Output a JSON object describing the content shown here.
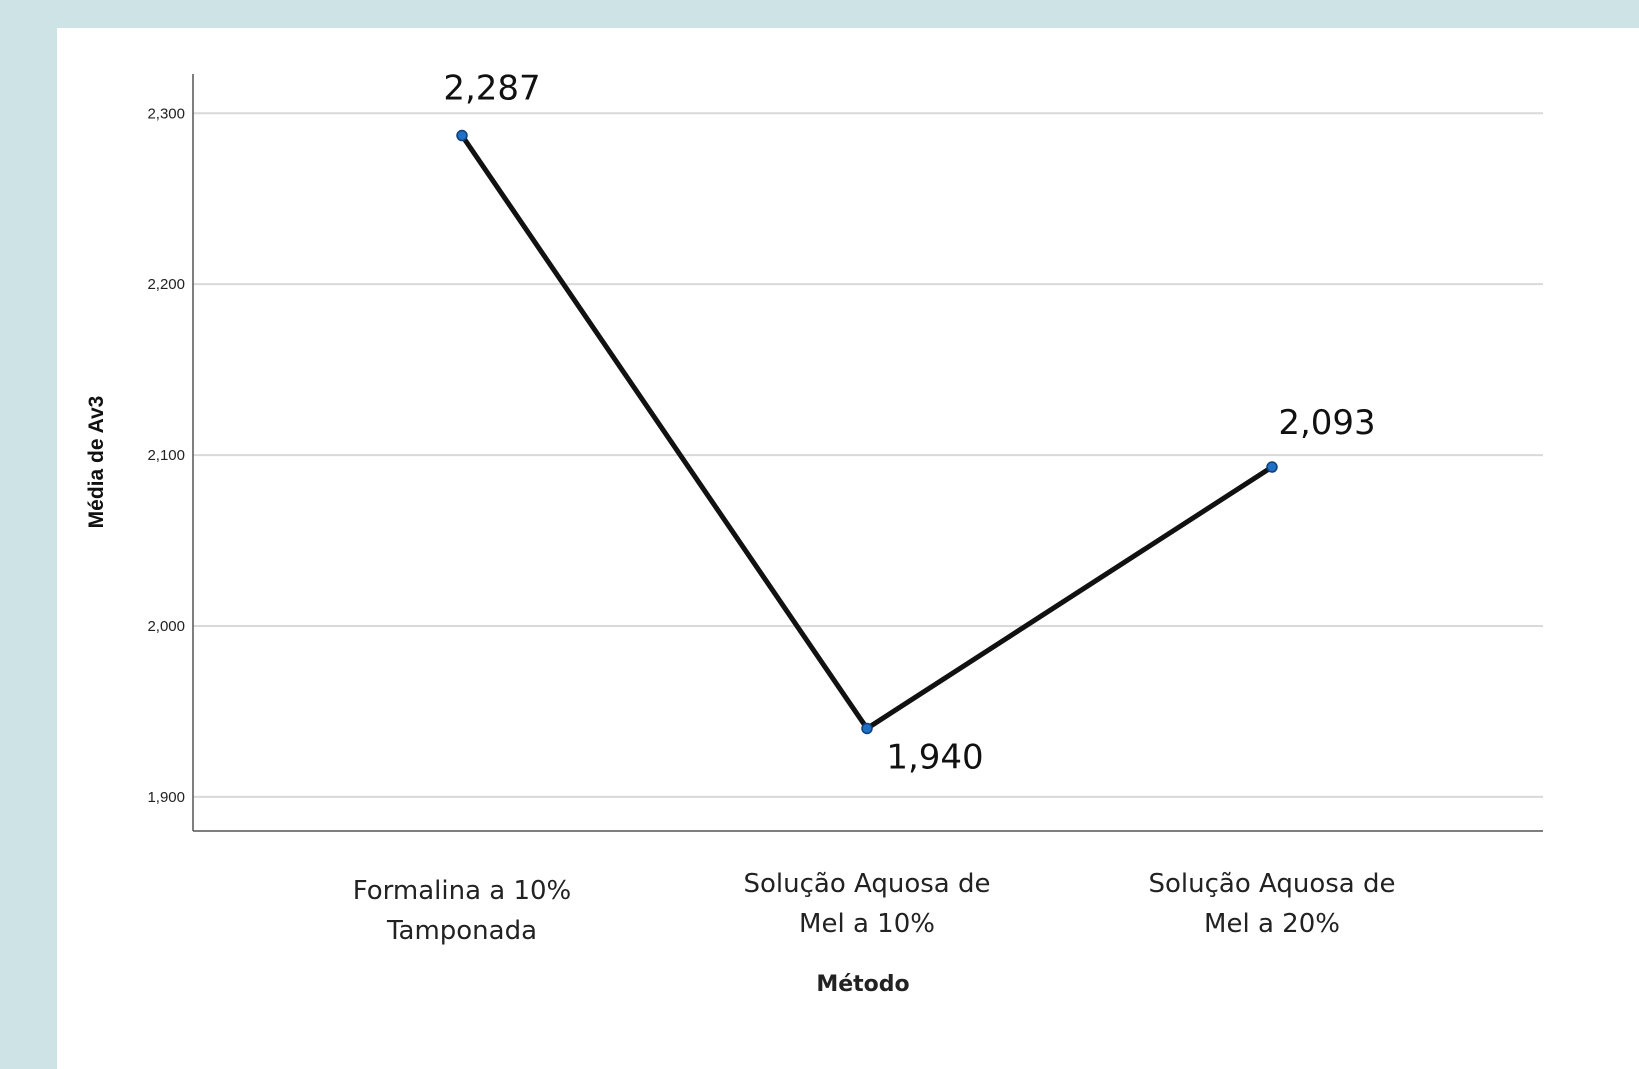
{
  "chart_data": {
    "type": "line",
    "categories": [
      [
        "Formalina a 10%",
        "Tamponada"
      ],
      [
        "Solução Aquosa de",
        "Mel a 10%"
      ],
      [
        "Solução Aquosa de",
        "Mel a 20%"
      ]
    ],
    "values": [
      2.287,
      1.94,
      2.093
    ],
    "data_labels": [
      "2,287",
      "1,940",
      "2,093"
    ],
    "xlabel": "Método",
    "ylabel": "Média de Av3",
    "ylim": [
      1.88,
      2.323
    ],
    "yticks": [
      1.9,
      2.0,
      2.1,
      2.2,
      2.3
    ],
    "ytick_labels": [
      "1,900",
      "2,000",
      "2,100",
      "2,200",
      "2,300"
    ],
    "grid": true,
    "line_color": "#111111",
    "marker_color": "#1f6fc5",
    "gridline_color": "#d9d9d9"
  }
}
